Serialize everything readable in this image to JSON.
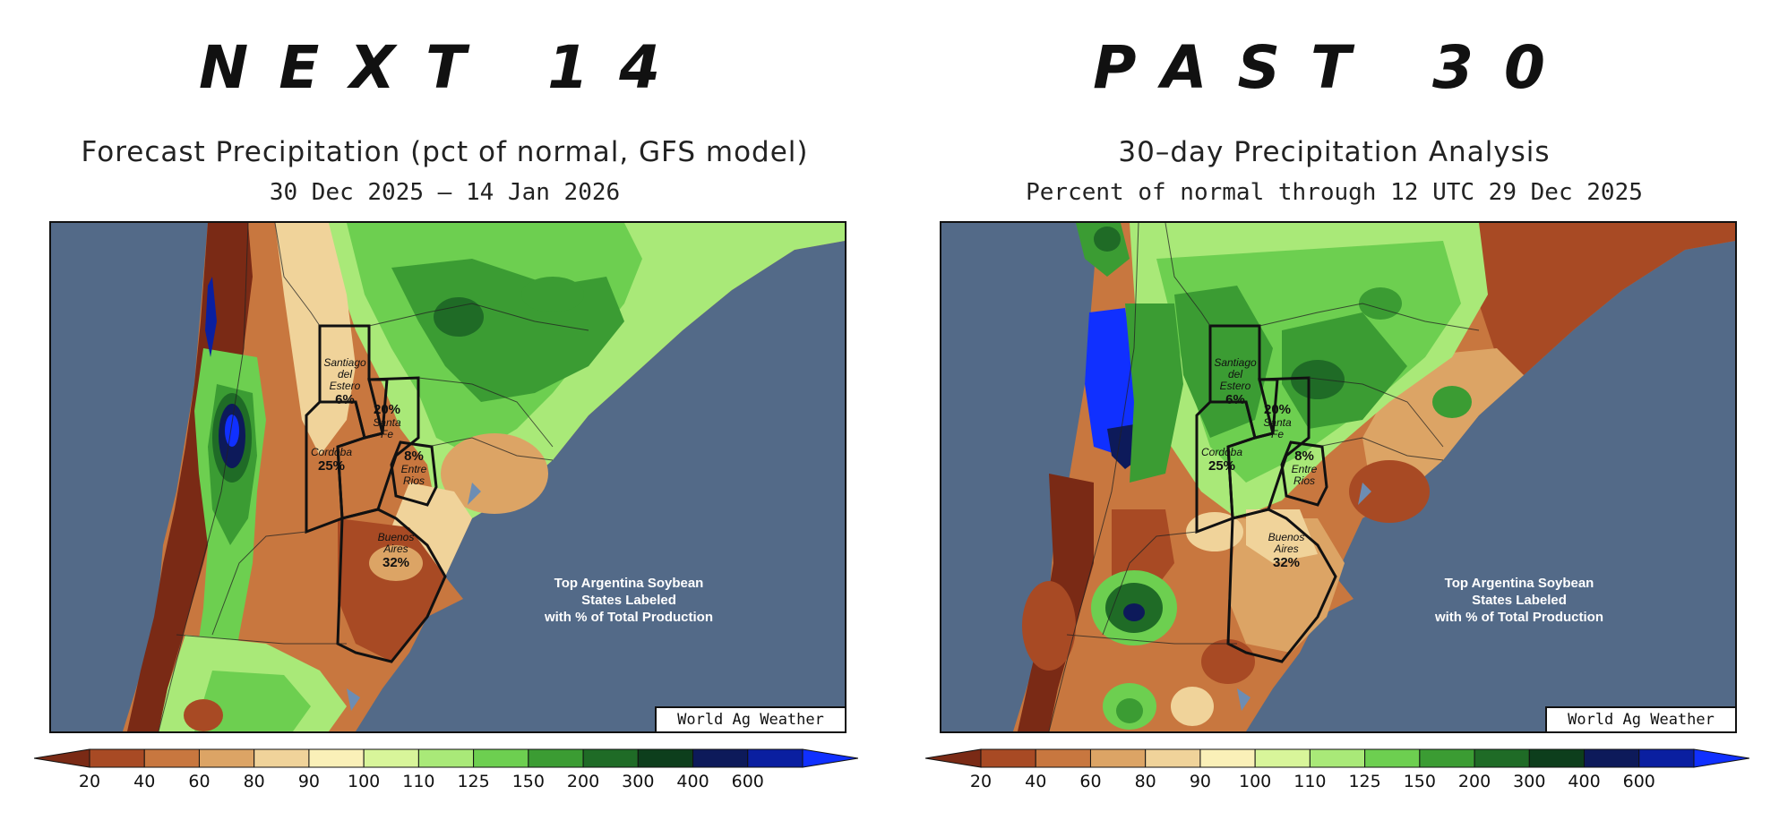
{
  "panels": [
    {
      "heading": "NEXT 14",
      "title": "Forecast Precipitation (pct of normal, GFS model)",
      "subtitle": "30 Dec 2025 – 14 Jan 2026",
      "note": [
        "Top Argentina Soybean",
        "States Labeled",
        "with % of Total Production"
      ],
      "credit": "World Ag Weather",
      "states": [
        {
          "name": "Santiago del Estero",
          "lines": [
            "Santiago",
            "del",
            "Estero"
          ],
          "pct": "6%"
        },
        {
          "name": "Santa Fe",
          "lines": [
            "Santa",
            "Fe"
          ],
          "pct": "20%"
        },
        {
          "name": "Cordoba",
          "lines": [
            "Cordoba"
          ],
          "pct": "25%"
        },
        {
          "name": "Entre Rios",
          "lines": [
            "Entre",
            "Rios"
          ],
          "pct": "8%"
        },
        {
          "name": "Buenos Aires",
          "lines": [
            "Buenos",
            "Aires"
          ],
          "pct": "32%"
        }
      ]
    },
    {
      "heading": "PAST 30",
      "title": "30–day Precipitation Analysis",
      "subtitle": "Percent of normal through 12 UTC 29 Dec 2025",
      "note": [
        "Top Argentina Soybean",
        "States Labeled",
        "with % of Total Production"
      ],
      "credit": "World Ag Weather",
      "states": [
        {
          "name": "Santiago del Estero",
          "lines": [
            "Santiago",
            "del",
            "Estero"
          ],
          "pct": "6%"
        },
        {
          "name": "Santa Fe",
          "lines": [
            "Santa",
            "Fe"
          ],
          "pct": "20%"
        },
        {
          "name": "Cordoba",
          "lines": [
            "Cordoba"
          ],
          "pct": "25%"
        },
        {
          "name": "Entre Rios",
          "lines": [
            "Entre",
            "Rios"
          ],
          "pct": "8%"
        },
        {
          "name": "Buenos Aires",
          "lines": [
            "Buenos",
            "Aires"
          ],
          "pct": "32%"
        }
      ]
    }
  ],
  "color_scale": {
    "ticks": [
      "20",
      "40",
      "60",
      "80",
      "90",
      "100",
      "110",
      "125",
      "150",
      "200",
      "300",
      "400",
      "600"
    ],
    "colors": [
      "#7a2a15",
      "#a84a24",
      "#c8773f",
      "#dca465",
      "#f0d39a",
      "#faf0b8",
      "#d8f59a",
      "#a9e978",
      "#6dcf50",
      "#3b9c33",
      "#1f6b26",
      "#0d3e1c",
      "#0d1a5a",
      "#0a1fa0",
      "#1030ff"
    ]
  },
  "colors": {
    "ocean": "#536a88",
    "border": "#111111",
    "river_lake": "#6d8db3"
  }
}
